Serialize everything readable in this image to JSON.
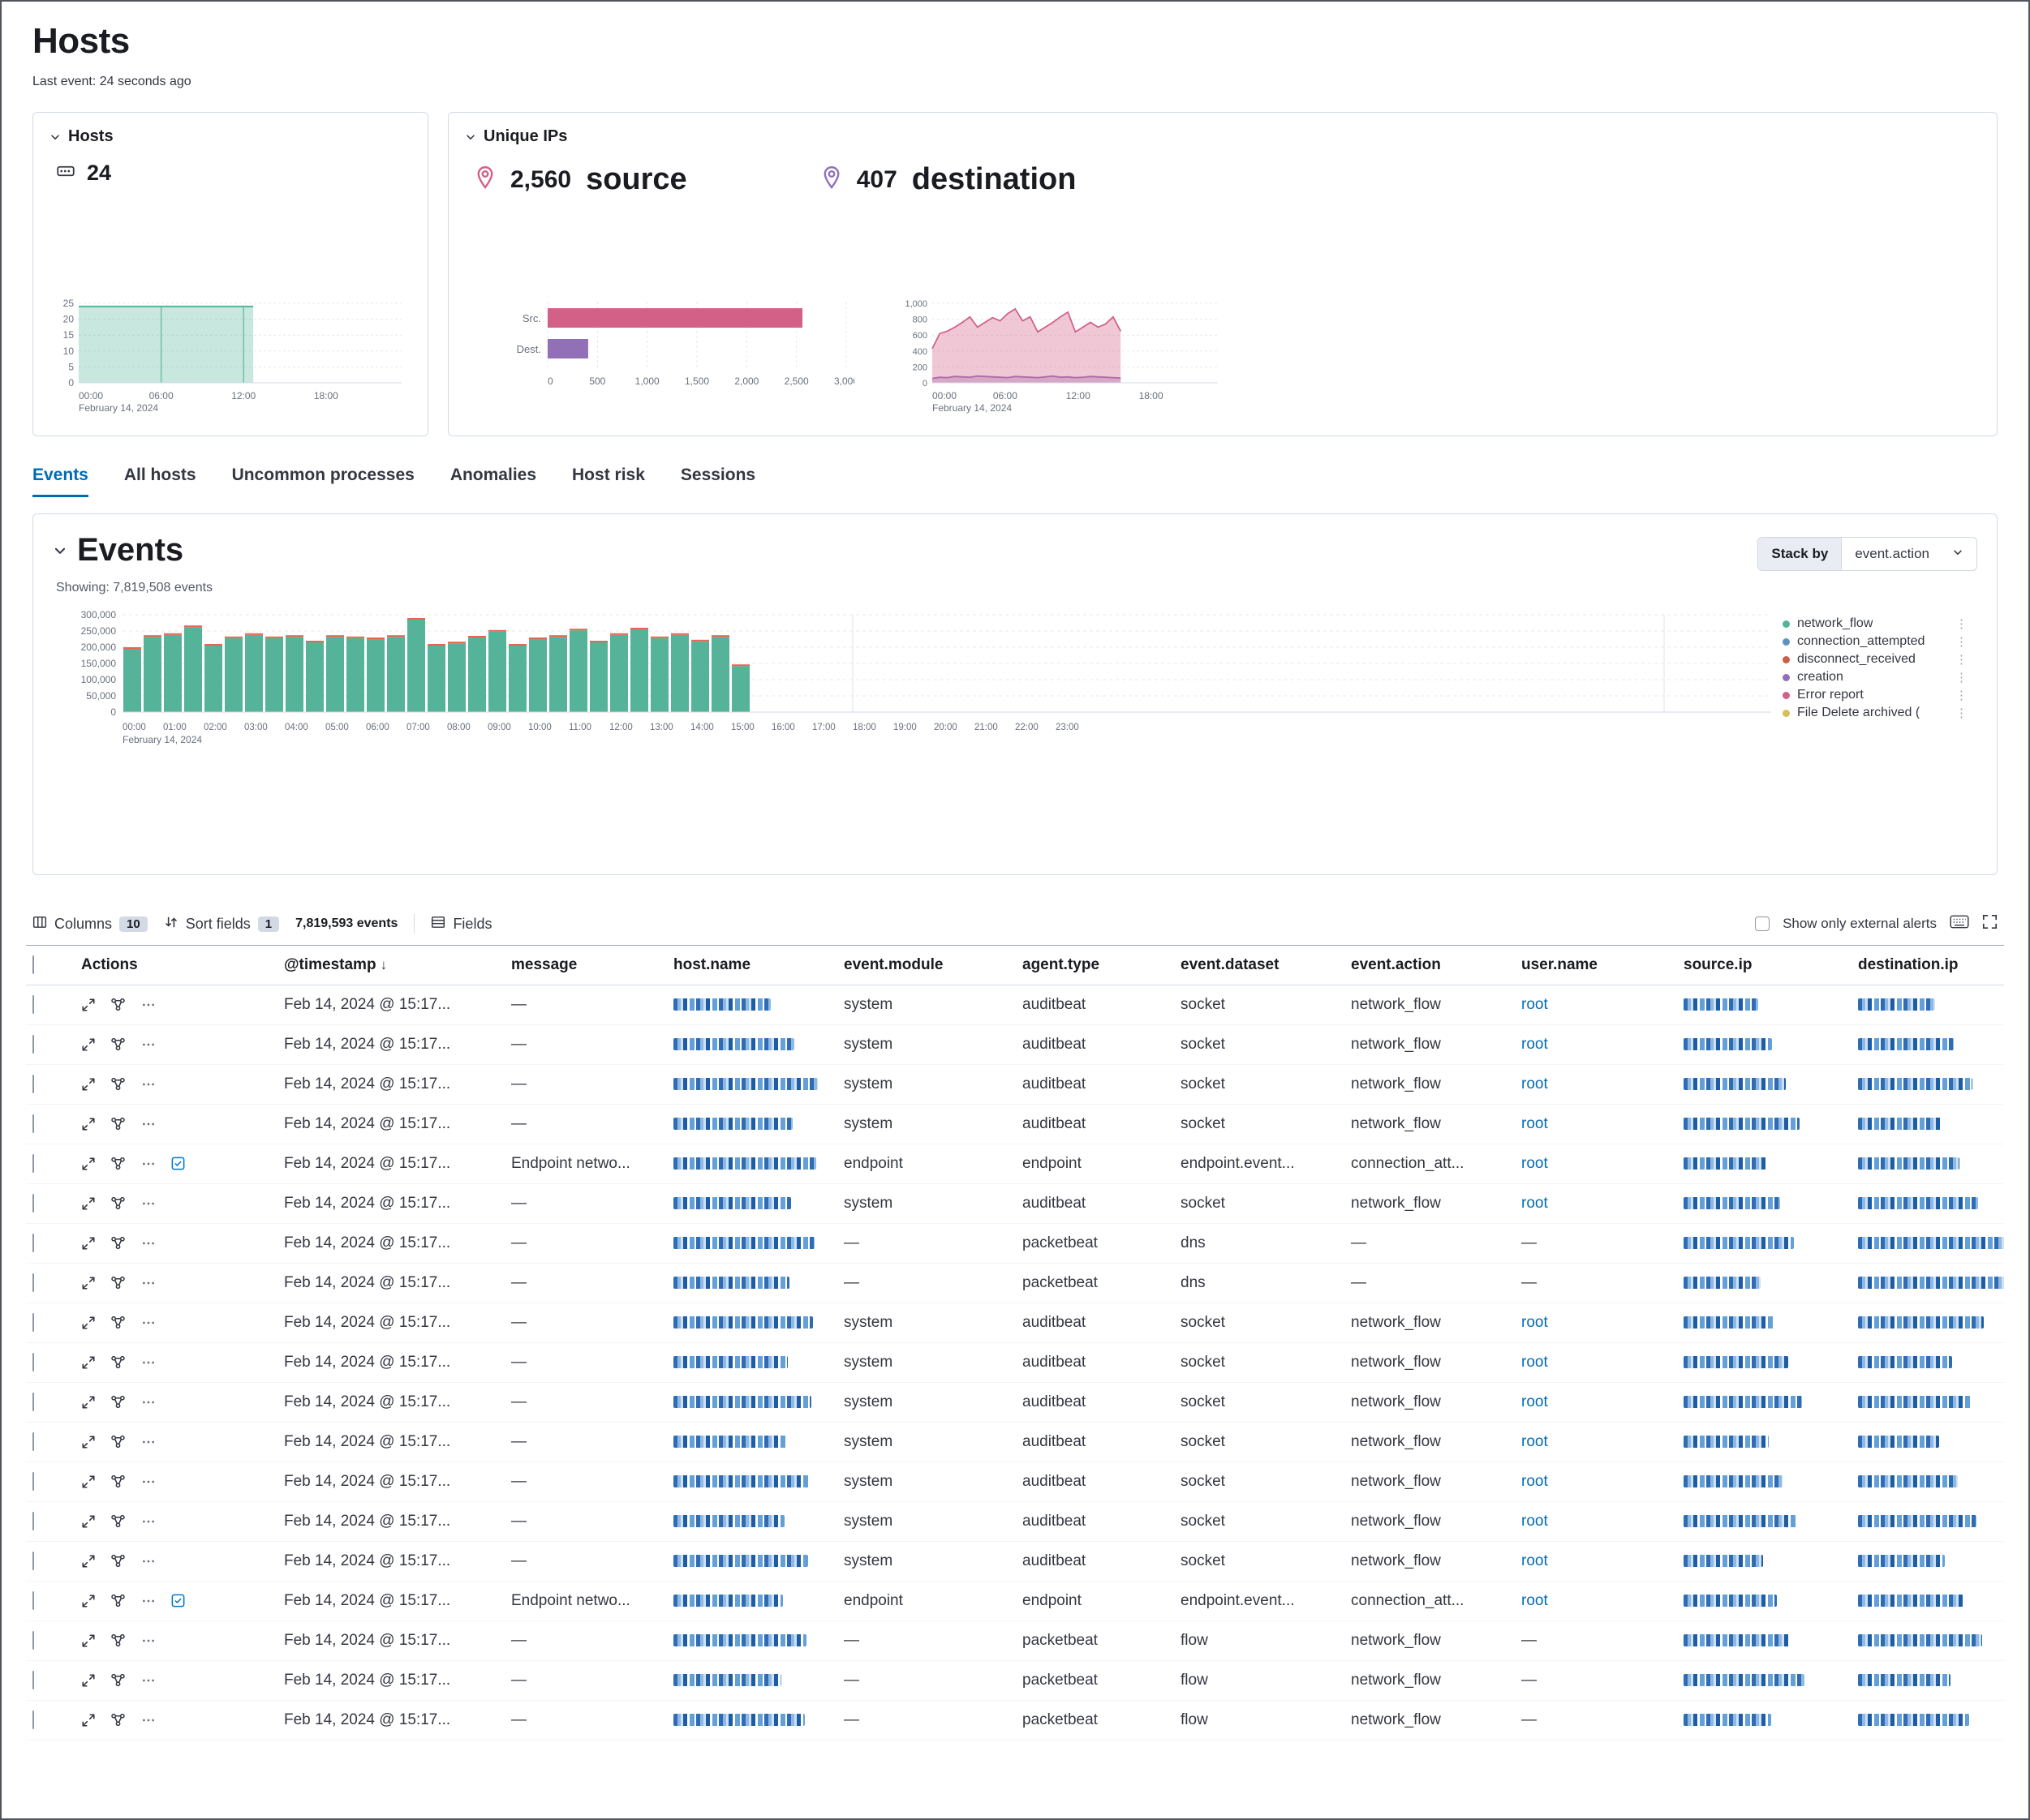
{
  "page": {
    "title": "Hosts",
    "last_event": "Last event: 24 seconds ago"
  },
  "kpi_hosts": {
    "title": "Hosts",
    "value": "24"
  },
  "unique_ips": {
    "title": "Unique IPs",
    "source_value": "2,560",
    "source_label": "source",
    "dest_value": "407",
    "dest_label": "destination"
  },
  "tabs": [
    {
      "label": "Events"
    },
    {
      "label": "All hosts"
    },
    {
      "label": "Uncommon processes"
    },
    {
      "label": "Anomalies"
    },
    {
      "label": "Host risk"
    },
    {
      "label": "Sessions"
    }
  ],
  "events_panel": {
    "title": "Events",
    "showing": "Showing: 7,819,508 events",
    "stack_by_label": "Stack by",
    "stack_by_value": "event.action",
    "legend": [
      {
        "label": "network_flow",
        "color": "#54b399"
      },
      {
        "label": "connection_attempted",
        "color": "#6092c0"
      },
      {
        "label": "disconnect_received",
        "color": "#ca5f4a"
      },
      {
        "label": "creation",
        "color": "#9170b8"
      },
      {
        "label": "Error report",
        "color": "#d36086"
      },
      {
        "label": "File Delete archived (",
        "color": "#d6bf57"
      }
    ]
  },
  "toolbar": {
    "columns_label": "Columns",
    "columns_count": "10",
    "sort_label": "Sort fields",
    "sort_count": "1",
    "events_count": "7,819,593 events",
    "fields_label": "Fields",
    "external_alerts_label": "Show only external alerts"
  },
  "table": {
    "headers": [
      "Actions",
      "@timestamp",
      "message",
      "host.name",
      "event.module",
      "agent.type",
      "event.dataset",
      "event.action",
      "user.name",
      "source.ip",
      "destination.ip"
    ],
    "rows": [
      {
        "timestamp": "Feb 14, 2024 @ 15:17...",
        "message": "—",
        "module": "system",
        "agent": "auditbeat",
        "dataset": "socket",
        "action": "network_flow",
        "user": "root",
        "endpoint": false
      },
      {
        "timestamp": "Feb 14, 2024 @ 15:17...",
        "message": "—",
        "module": "system",
        "agent": "auditbeat",
        "dataset": "socket",
        "action": "network_flow",
        "user": "root",
        "endpoint": false
      },
      {
        "timestamp": "Feb 14, 2024 @ 15:17...",
        "message": "—",
        "module": "system",
        "agent": "auditbeat",
        "dataset": "socket",
        "action": "network_flow",
        "user": "root",
        "endpoint": false
      },
      {
        "timestamp": "Feb 14, 2024 @ 15:17...",
        "message": "—",
        "module": "system",
        "agent": "auditbeat",
        "dataset": "socket",
        "action": "network_flow",
        "user": "root",
        "endpoint": false
      },
      {
        "timestamp": "Feb 14, 2024 @ 15:17...",
        "message": "Endpoint netwo...",
        "module": "endpoint",
        "agent": "endpoint",
        "dataset": "endpoint.event...",
        "action": "connection_att...",
        "user": "root",
        "endpoint": true
      },
      {
        "timestamp": "Feb 14, 2024 @ 15:17...",
        "message": "—",
        "module": "system",
        "agent": "auditbeat",
        "dataset": "socket",
        "action": "network_flow",
        "user": "root",
        "endpoint": false
      },
      {
        "timestamp": "Feb 14, 2024 @ 15:17...",
        "message": "—",
        "module": "—",
        "agent": "packetbeat",
        "dataset": "dns",
        "action": "—",
        "user": "—",
        "endpoint": false
      },
      {
        "timestamp": "Feb 14, 2024 @ 15:17...",
        "message": "—",
        "module": "—",
        "agent": "packetbeat",
        "dataset": "dns",
        "action": "—",
        "user": "—",
        "endpoint": false
      },
      {
        "timestamp": "Feb 14, 2024 @ 15:17...",
        "message": "—",
        "module": "system",
        "agent": "auditbeat",
        "dataset": "socket",
        "action": "network_flow",
        "user": "root",
        "endpoint": false
      },
      {
        "timestamp": "Feb 14, 2024 @ 15:17...",
        "message": "—",
        "module": "system",
        "agent": "auditbeat",
        "dataset": "socket",
        "action": "network_flow",
        "user": "root",
        "endpoint": false
      },
      {
        "timestamp": "Feb 14, 2024 @ 15:17...",
        "message": "—",
        "module": "system",
        "agent": "auditbeat",
        "dataset": "socket",
        "action": "network_flow",
        "user": "root",
        "endpoint": false
      },
      {
        "timestamp": "Feb 14, 2024 @ 15:17...",
        "message": "—",
        "module": "system",
        "agent": "auditbeat",
        "dataset": "socket",
        "action": "network_flow",
        "user": "root",
        "endpoint": false
      },
      {
        "timestamp": "Feb 14, 2024 @ 15:17...",
        "message": "—",
        "module": "system",
        "agent": "auditbeat",
        "dataset": "socket",
        "action": "network_flow",
        "user": "root",
        "endpoint": false
      },
      {
        "timestamp": "Feb 14, 2024 @ 15:17...",
        "message": "—",
        "module": "system",
        "agent": "auditbeat",
        "dataset": "socket",
        "action": "network_flow",
        "user": "root",
        "endpoint": false
      },
      {
        "timestamp": "Feb 14, 2024 @ 15:17...",
        "message": "—",
        "module": "system",
        "agent": "auditbeat",
        "dataset": "socket",
        "action": "network_flow",
        "user": "root",
        "endpoint": false
      },
      {
        "timestamp": "Feb 14, 2024 @ 15:17...",
        "message": "Endpoint netwo...",
        "module": "endpoint",
        "agent": "endpoint",
        "dataset": "endpoint.event...",
        "action": "connection_att...",
        "user": "root",
        "endpoint": true
      },
      {
        "timestamp": "Feb 14, 2024 @ 15:17...",
        "message": "—",
        "module": "—",
        "agent": "packetbeat",
        "dataset": "flow",
        "action": "network_flow",
        "user": "—",
        "endpoint": false
      },
      {
        "timestamp": "Feb 14, 2024 @ 15:17...",
        "message": "—",
        "module": "—",
        "agent": "packetbeat",
        "dataset": "flow",
        "action": "network_flow",
        "user": "—",
        "endpoint": false
      },
      {
        "timestamp": "Feb 14, 2024 @ 15:17...",
        "message": "—",
        "module": "—",
        "agent": "packetbeat",
        "dataset": "flow",
        "action": "network_flow",
        "user": "—",
        "endpoint": false
      }
    ]
  },
  "chart_data": [
    {
      "id": "hosts-area",
      "type": "area",
      "title": "Hosts",
      "ylim": [
        0,
        25
      ],
      "yticks": [
        0,
        5,
        10,
        15,
        20,
        25
      ],
      "xticks": [
        "00:00",
        "06:00",
        "12:00",
        "18:00"
      ],
      "date_label": "February 14, 2024",
      "series": [
        {
          "name": "hosts",
          "color": "#54b399",
          "value": 24,
          "start_hour": 0,
          "end_hour": 12.7
        }
      ]
    },
    {
      "id": "unique-ips-bar",
      "type": "bar",
      "orientation": "horizontal",
      "categories": [
        "Src.",
        "Dest."
      ],
      "values": [
        2560,
        407
      ],
      "colors": [
        "#d36086",
        "#9170b8"
      ],
      "xlim": [
        0,
        3000
      ],
      "xticks": [
        0,
        500,
        1000,
        1500,
        2000,
        2500,
        3000
      ]
    },
    {
      "id": "unique-ips-area",
      "type": "area",
      "ylim": [
        0,
        1000
      ],
      "yticks": [
        0,
        200,
        400,
        600,
        800,
        1000
      ],
      "xticks": [
        "00:00",
        "06:00",
        "12:00",
        "18:00"
      ],
      "date_label": "February 14, 2024",
      "end_hour": 15.5,
      "series": [
        {
          "name": "source.ip",
          "color": "#d36086",
          "values": [
            430,
            620,
            650,
            700,
            760,
            830,
            700,
            760,
            820,
            780,
            870,
            930,
            780,
            830,
            640,
            700,
            760,
            830,
            890,
            640,
            700,
            760,
            700,
            740,
            830,
            650
          ]
        },
        {
          "name": "destination.ip",
          "color": "#9170b8",
          "values": [
            55,
            70,
            65,
            80,
            75,
            70,
            85,
            80,
            75,
            70,
            65,
            80,
            75,
            70,
            65,
            75,
            85,
            70,
            75,
            65,
            70,
            80,
            75,
            70,
            65,
            60
          ]
        }
      ]
    },
    {
      "id": "events-histogram",
      "type": "bar",
      "stacked": true,
      "ylim": [
        0,
        300000
      ],
      "yticks": [
        0,
        50000,
        100000,
        150000,
        200000,
        250000,
        300000
      ],
      "interval_minutes": 30,
      "date_label": "February 14, 2024",
      "xticks": [
        "00:00",
        "01:00",
        "02:00",
        "03:00",
        "04:00",
        "05:00",
        "06:00",
        "07:00",
        "08:00",
        "09:00",
        "10:00",
        "11:00",
        "12:00",
        "13:00",
        "14:00",
        "15:00",
        "16:00",
        "17:00",
        "18:00",
        "19:00",
        "20:00",
        "21:00",
        "22:00",
        "23:00"
      ],
      "series": [
        {
          "name": "network_flow",
          "color": "#54b399",
          "values": [
            195000,
            232000,
            238000,
            262000,
            205000,
            228000,
            238000,
            228000,
            232000,
            215000,
            232000,
            228000,
            225000,
            232000,
            285000,
            205000,
            212000,
            230000,
            248000,
            205000,
            225000,
            232000,
            252000,
            215000,
            238000,
            255000,
            228000,
            238000,
            218000,
            232000,
            142000
          ]
        },
        {
          "name": "other_actions",
          "color": "#e7664c",
          "value_per_bucket": 5000
        }
      ]
    }
  ]
}
